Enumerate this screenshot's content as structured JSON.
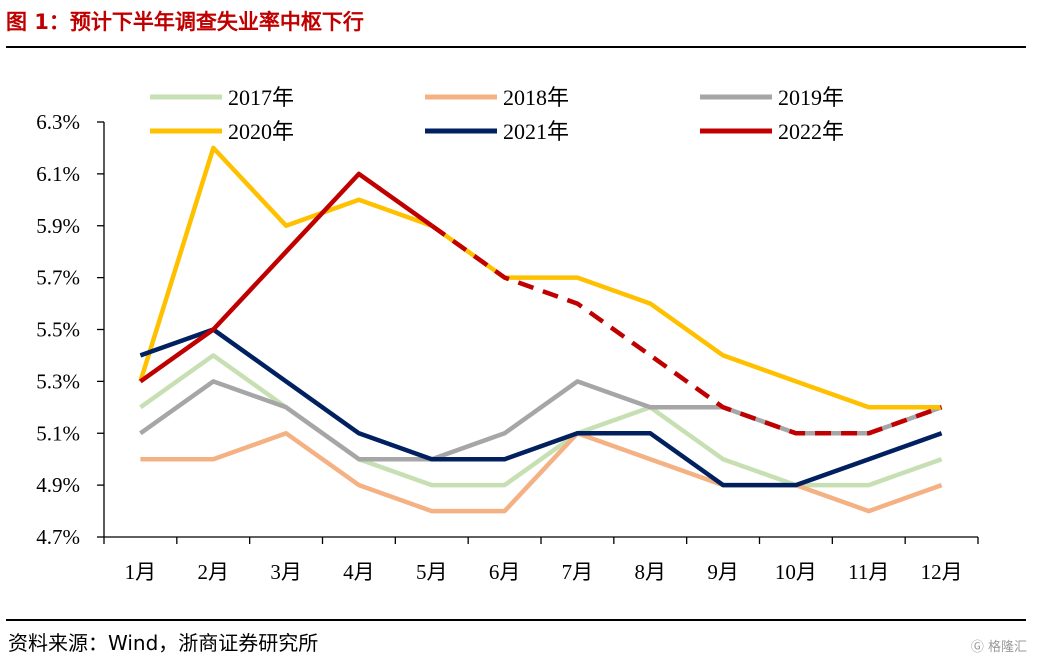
{
  "figure_title": "图 1：预计下半年调查失业率中枢下行",
  "source_note": "资料来源：Wind，浙商证券研究所",
  "watermark_text": "格隆汇",
  "chart_data": {
    "type": "line",
    "title": "",
    "xlabel": "",
    "ylabel": "",
    "categories": [
      "1月",
      "2月",
      "3月",
      "4月",
      "5月",
      "6月",
      "7月",
      "8月",
      "9月",
      "10月",
      "11月",
      "12月"
    ],
    "y_ticks": [
      "4.7%",
      "4.9%",
      "5.1%",
      "5.3%",
      "5.5%",
      "5.7%",
      "5.9%",
      "6.1%",
      "6.3%"
    ],
    "ylim": [
      4.7,
      6.3
    ],
    "grid": false,
    "legend_position": "top",
    "series": [
      {
        "name": "2017年",
        "color": "#c6e0b4",
        "values": [
          5.2,
          5.4,
          5.2,
          5.0,
          4.9,
          4.9,
          5.1,
          5.2,
          5.0,
          4.9,
          4.9,
          5.0
        ]
      },
      {
        "name": "2018年",
        "color": "#f4b183",
        "values": [
          5.0,
          5.0,
          5.1,
          4.9,
          4.8,
          4.8,
          5.1,
          5.0,
          4.9,
          4.9,
          4.8,
          4.9
        ]
      },
      {
        "name": "2019年",
        "color": "#a6a6a6",
        "values": [
          5.1,
          5.3,
          5.2,
          5.0,
          5.0,
          5.1,
          5.3,
          5.2,
          5.2,
          5.1,
          5.1,
          5.2
        ]
      },
      {
        "name": "2020年",
        "color": "#ffc000",
        "values": [
          5.3,
          6.2,
          5.9,
          6.0,
          5.9,
          5.7,
          5.7,
          5.6,
          5.4,
          5.3,
          5.2,
          5.2
        ]
      },
      {
        "name": "2021年",
        "color": "#002060",
        "values": [
          5.4,
          5.5,
          5.3,
          5.1,
          5.0,
          5.0,
          5.1,
          5.1,
          4.9,
          4.9,
          5.0,
          5.1
        ]
      },
      {
        "name": "2022年",
        "color": "#c00000",
        "values": [
          5.3,
          5.5,
          5.8,
          6.1,
          5.9,
          5.7,
          5.6,
          5.4,
          5.2,
          5.1,
          5.1,
          5.2
        ],
        "dashed_from_index": 4
      }
    ]
  }
}
